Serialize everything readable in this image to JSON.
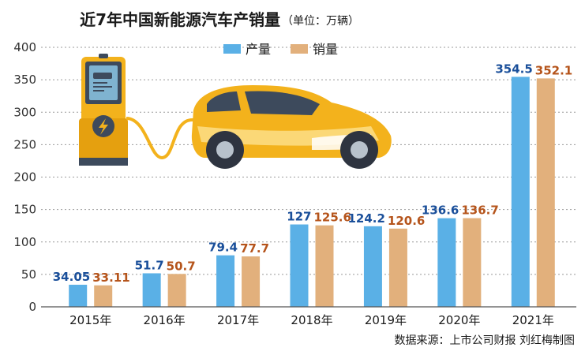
{
  "title": "近7年中国新能源汽车产销量",
  "subtitle": "（单位：万辆）",
  "source": "数据来源：上市公司财报   刘红梅制图",
  "colors": {
    "production": "#5ab0e6",
    "sales": "#e2b07c",
    "production_label": "#1a4f9a",
    "sales_label": "#b5541b"
  },
  "chart_data": {
    "type": "bar",
    "title": "近7年中国新能源汽车产销量",
    "unit": "（单位：万辆）",
    "categories": [
      "2015年",
      "2016年",
      "2017年",
      "2018年",
      "2019年",
      "2020年",
      "2021年"
    ],
    "series": [
      {
        "name": "产量",
        "values": [
          34.05,
          51.7,
          79.4,
          127,
          124.2,
          136.6,
          354.5
        ],
        "labels": [
          "34.05",
          "51.7",
          "79.4",
          "127",
          "124.2",
          "136.6",
          "354.5"
        ]
      },
      {
        "name": "销量",
        "values": [
          33.11,
          50.7,
          77.7,
          125.6,
          120.6,
          136.7,
          352.1
        ],
        "labels": [
          "33.11",
          "50.7",
          "77.7",
          "125.6",
          "120.6",
          "136.7",
          "352.1"
        ]
      }
    ],
    "yticks": [
      "0",
      "50",
      "100",
      "150",
      "200",
      "250",
      "300",
      "350",
      "400"
    ],
    "ylim": [
      0,
      400
    ],
    "grid": true,
    "legend": "top-center"
  },
  "illustration": {
    "charger_icon": "ev-charger-icon",
    "car_icon": "electric-car-icon"
  }
}
